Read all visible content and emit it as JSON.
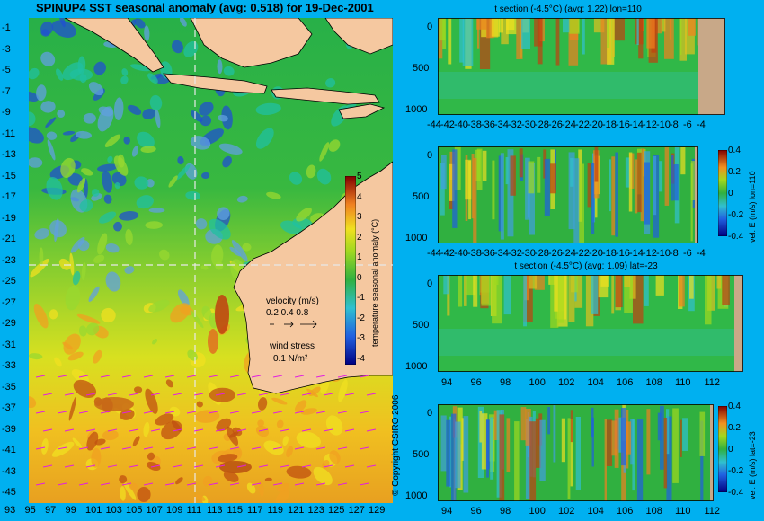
{
  "main": {
    "title": "SPINUP4 SST seasonal anomaly (avg: 0.518) for 19-Dec-2001",
    "y_ticks": [
      "-1",
      "-3",
      "-5",
      "-7",
      "-9",
      "-11",
      "-13",
      "-15",
      "-17",
      "-19",
      "-21",
      "-23",
      "-25",
      "-27",
      "-29",
      "-31",
      "-33",
      "-35",
      "-37",
      "-39",
      "-41",
      "-43",
      "-45"
    ],
    "x_ticks": [
      "93",
      "95",
      "97",
      "99",
      "101",
      "103",
      "105",
      "107",
      "109",
      "111",
      "113",
      "115",
      "117",
      "119",
      "121",
      "123",
      "125",
      "127",
      "129"
    ],
    "colorbar": {
      "label": "temperature seasonal anomaly (°C)",
      "ticks": [
        "5",
        "4",
        "3",
        "2",
        "1",
        "0",
        "-1",
        "-2",
        "-3",
        "-4"
      ]
    },
    "velocity_legend": {
      "title": "velocity (m/s)",
      "values": "0.2 0.4 0.8"
    },
    "wind_legend": {
      "title": "wind stress",
      "value": "0.1 N/m²"
    },
    "crosshair": {
      "lon": 110,
      "lat": -23
    }
  },
  "copyright": "© Copyright CSIRO 2006",
  "panels": {
    "t_section_lon": {
      "title": "t section (-4.5°C) (avg: 1.22) lon=110",
      "y_ticks": [
        "0",
        "500",
        "1000"
      ],
      "x_ticks": [
        "-44",
        "-42",
        "-40",
        "-38",
        "-36",
        "-34",
        "-32",
        "-30",
        "-28",
        "-26",
        "-24",
        "-22",
        "-20",
        "-18",
        "-16",
        "-14",
        "-12",
        "-10",
        "-8",
        "-6",
        "-4"
      ]
    },
    "vel_section_lon": {
      "y_ticks": [
        "0",
        "500",
        "1000"
      ],
      "x_ticks": [
        "-44",
        "-42",
        "-40",
        "-38",
        "-36",
        "-34",
        "-32",
        "-30",
        "-28",
        "-26",
        "-24",
        "-22",
        "-20",
        "-18",
        "-16",
        "-14",
        "-12",
        "-10",
        "-8",
        "-6",
        "-4"
      ],
      "colorbar_label": "vel. E (m/s) lon=110",
      "colorbar_ticks": [
        "0.4",
        "0.2",
        "0",
        "-0.2",
        "-0.4"
      ]
    },
    "t_section_lat": {
      "title": "t section (-4.5°C) (avg: 1.09) lat=-23",
      "y_ticks": [
        "0",
        "500",
        "1000"
      ],
      "x_ticks": [
        "94",
        "96",
        "98",
        "100",
        "102",
        "104",
        "106",
        "108",
        "110",
        "112"
      ]
    },
    "vel_section_lat": {
      "y_ticks": [
        "0",
        "500",
        "1000"
      ],
      "x_ticks": [
        "94",
        "96",
        "98",
        "100",
        "102",
        "104",
        "106",
        "108",
        "110",
        "112"
      ],
      "colorbar_label": "vel. E (m/s) lat=-23",
      "colorbar_ticks": [
        "0.4",
        "0.2",
        "0",
        "-0.2",
        "-0.4"
      ]
    }
  },
  "colors": {
    "background": "#00b0f0",
    "land": "#f5c8a0",
    "section_land": "#c8a888",
    "anomaly_neutral": "#2cb040",
    "anomaly_warm": "#e8e020",
    "anomaly_hot": "#c02800",
    "anomaly_cold": "#2050d0"
  },
  "chart_data": [
    {
      "type": "heatmap",
      "title": "SPINUP4 SST seasonal anomaly (avg: 0.518) for 19-Dec-2001",
      "xlabel": "",
      "ylabel": "",
      "xlim": [
        93,
        130
      ],
      "ylim": [
        -45,
        0
      ],
      "color_range": [
        -4,
        5
      ],
      "color_units": "°C",
      "average": 0.518,
      "crosshair": {
        "lon": 110,
        "lat": -23
      }
    },
    {
      "type": "heatmap",
      "title": "t section (-4.5°C) (avg: 1.22) lon=110",
      "xlim": [
        -45,
        -3
      ],
      "ylim": [
        1050,
        0
      ],
      "average": 1.22
    },
    {
      "type": "heatmap",
      "title": "",
      "xlim": [
        -45,
        -3
      ],
      "ylim": [
        1050,
        0
      ],
      "color_range": [
        -0.4,
        0.4
      ],
      "color_label": "vel. E (m/s) lon=110"
    },
    {
      "type": "heatmap",
      "title": "t section (-4.5°C) (avg: 1.09) lat=-23",
      "xlim": [
        93,
        114
      ],
      "ylim": [
        1050,
        0
      ],
      "average": 1.09
    },
    {
      "type": "heatmap",
      "title": "",
      "xlim": [
        93,
        114
      ],
      "ylim": [
        1050,
        0
      ],
      "color_range": [
        -0.4,
        0.4
      ],
      "color_label": "vel. E (m/s) lat=-23"
    }
  ]
}
